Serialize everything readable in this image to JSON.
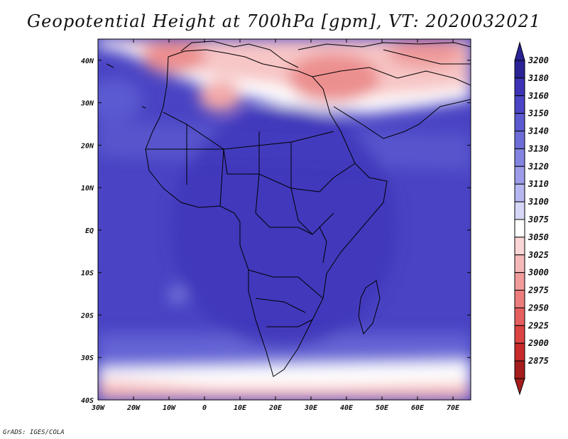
{
  "title": "Geopotential Height at 700hPa [gpm], VT: 2020032021",
  "credit": "GrADS: IGES/COLA",
  "axes": {
    "lon_ticks": [
      "30W",
      "20W",
      "10W",
      "0",
      "10E",
      "20E",
      "30E",
      "40E",
      "50E",
      "60E",
      "70E"
    ],
    "lat_ticks": [
      "40N",
      "30N",
      "20N",
      "10N",
      "EQ",
      "10S",
      "20S",
      "30S",
      "40S"
    ]
  },
  "colorbar": {
    "labels": [
      "3200",
      "3180",
      "3160",
      "3150",
      "3140",
      "3130",
      "3120",
      "3110",
      "3100",
      "3075",
      "3050",
      "3025",
      "3000",
      "2975",
      "2950",
      "2925",
      "2900",
      "2875"
    ],
    "colors": [
      "#2a2396",
      "#3d33b6",
      "#4b45c6",
      "#5b5ad0",
      "#6d6dd8",
      "#8383e1",
      "#9c9ce9",
      "#b6b7f1",
      "#d6d6f7",
      "#ffffff",
      "#fad6d6",
      "#f6b9b9",
      "#f19b9b",
      "#ec7d7d",
      "#e65f5f",
      "#dc4343",
      "#c72a2a",
      "#a51d1d"
    ]
  }
}
